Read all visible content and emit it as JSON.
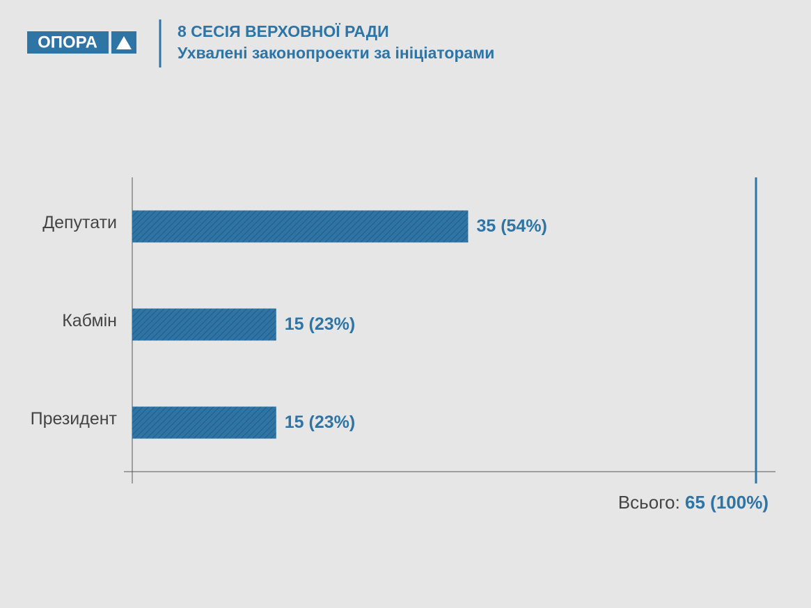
{
  "logo": "ОПОРА",
  "chart_data": {
    "type": "bar",
    "orientation": "horizontal",
    "title": "8 СЕСІЯ ВЕРХОВНОЇ РАДИ",
    "subtitle": "Ухвалені законопроекти за ініціаторами",
    "categories": [
      "Депутати",
      "Кабмін",
      "Президент"
    ],
    "values": [
      35,
      15,
      15
    ],
    "value_labels": [
      "35 (54%)",
      "15 (23%)",
      "15 (23%)"
    ],
    "color": "#2e74a5",
    "xlim": [
      0,
      65
    ],
    "total": {
      "label": "Всього:",
      "value": 65,
      "value_label": "65 (100%)"
    }
  }
}
